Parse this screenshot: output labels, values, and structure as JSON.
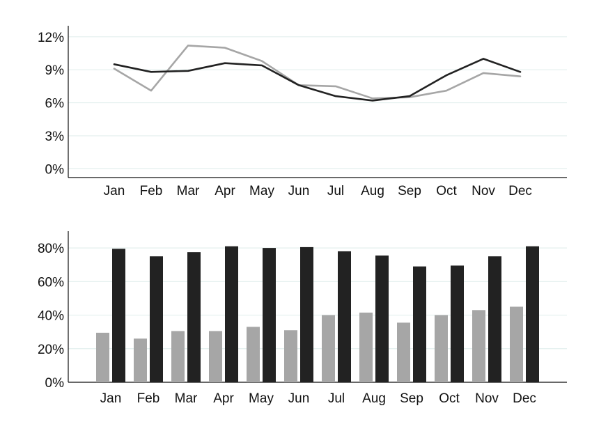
{
  "colors": {
    "series_dark": "#222222",
    "series_light": "#a6a6a6",
    "grid": "#e3efee",
    "axis": "#111111",
    "background": "#ffffff"
  },
  "chart_data": [
    {
      "type": "line",
      "categories": [
        "Jan",
        "Feb",
        "Mar",
        "Apr",
        "May",
        "Jun",
        "Jul",
        "Aug",
        "Sep",
        "Oct",
        "Nov",
        "Dec"
      ],
      "series": [
        {
          "color": "#a6a6a6",
          "values": [
            9.1,
            7.1,
            11.2,
            11.0,
            9.8,
            7.6,
            7.5,
            6.4,
            6.5,
            7.1,
            8.7,
            8.4
          ]
        },
        {
          "color": "#222222",
          "values": [
            9.5,
            8.8,
            8.9,
            9.6,
            9.4,
            7.6,
            6.6,
            6.2,
            6.6,
            8.5,
            10.0,
            8.8
          ]
        }
      ],
      "yticks": [
        "0%",
        "3%",
        "6%",
        "9%",
        "12%"
      ],
      "ytick_values": [
        0,
        3,
        6,
        9,
        12
      ],
      "ylim": [
        -0.8,
        13.0
      ],
      "grid": true,
      "title": "",
      "xlabel": "",
      "ylabel": ""
    },
    {
      "type": "bar",
      "categories": [
        "Jan",
        "Feb",
        "Mar",
        "Apr",
        "May",
        "Jun",
        "Jul",
        "Aug",
        "Sep",
        "Oct",
        "Nov",
        "Dec"
      ],
      "series": [
        {
          "color": "#a6a6a6",
          "values": [
            29.5,
            26,
            30.5,
            30.5,
            33,
            31,
            40,
            41.5,
            35.5,
            40,
            43,
            45
          ]
        },
        {
          "color": "#222222",
          "values": [
            79.5,
            75,
            77.5,
            81,
            80,
            80.5,
            78,
            75.5,
            69,
            69.5,
            75,
            81
          ]
        }
      ],
      "yticks": [
        "0%",
        "20%",
        "40%",
        "60%",
        "80%"
      ],
      "ytick_values": [
        0,
        20,
        40,
        60,
        80
      ],
      "ylim": [
        0,
        90
      ],
      "grid": true,
      "title": "",
      "xlabel": "",
      "ylabel": ""
    }
  ]
}
